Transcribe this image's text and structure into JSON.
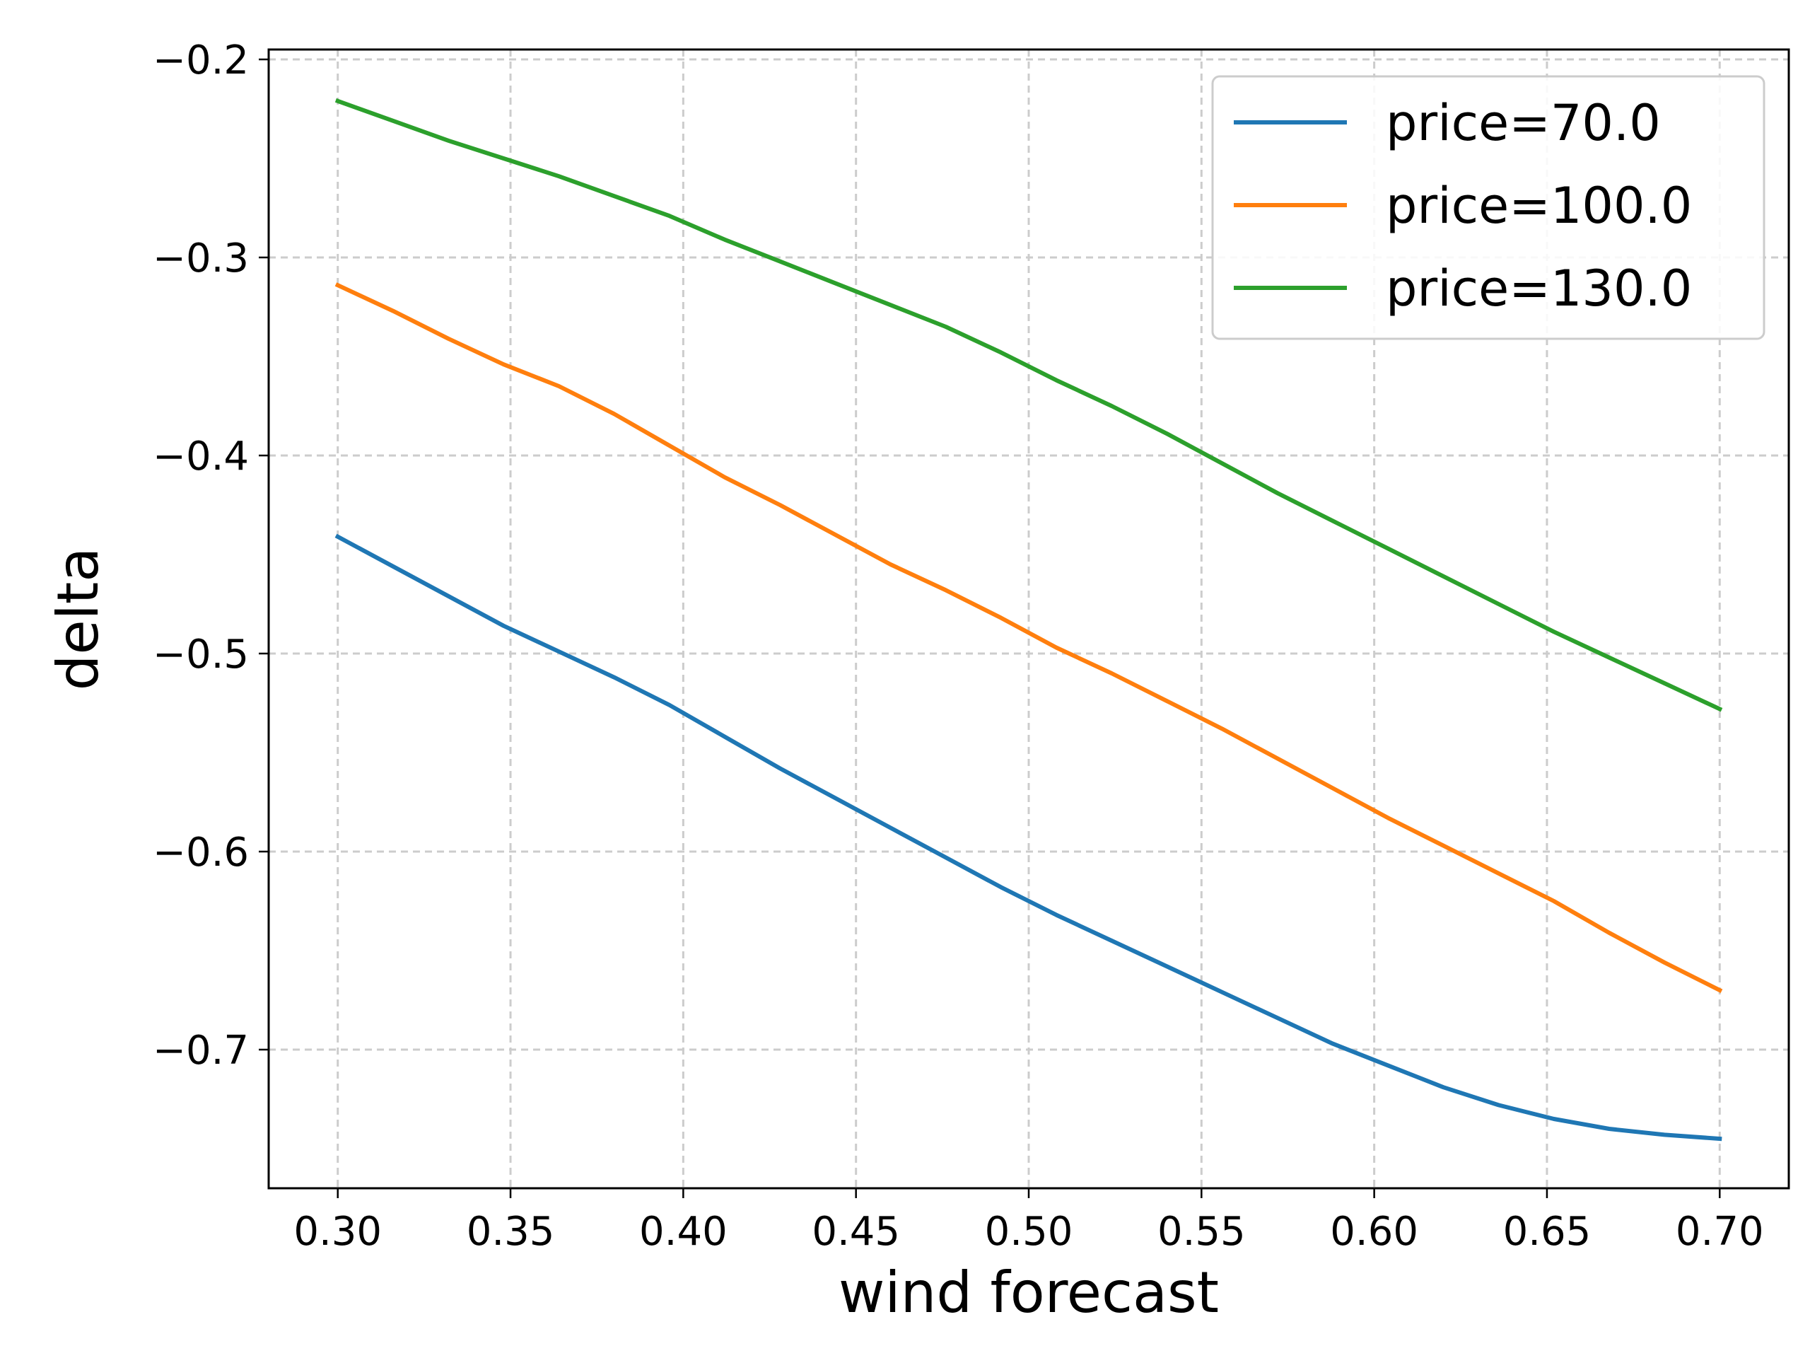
{
  "chart_data": {
    "type": "line",
    "title": "",
    "xlabel": "wind forecast",
    "ylabel": "delta",
    "xlim": [
      0.28,
      0.72
    ],
    "ylim": [
      -0.77,
      -0.195
    ],
    "grid": true,
    "legend_position": "top-right",
    "x_ticks": [
      {
        "value": 0.3,
        "label": "0.30"
      },
      {
        "value": 0.35,
        "label": "0.35"
      },
      {
        "value": 0.4,
        "label": "0.40"
      },
      {
        "value": 0.45,
        "label": "0.45"
      },
      {
        "value": 0.5,
        "label": "0.50"
      },
      {
        "value": 0.55,
        "label": "0.55"
      },
      {
        "value": 0.6,
        "label": "0.60"
      },
      {
        "value": 0.65,
        "label": "0.65"
      },
      {
        "value": 0.7,
        "label": "0.70"
      }
    ],
    "y_ticks": [
      {
        "value": -0.7,
        "label": "−0.7"
      },
      {
        "value": -0.6,
        "label": "−0.6"
      },
      {
        "value": -0.5,
        "label": "−0.5"
      },
      {
        "value": -0.4,
        "label": "−0.4"
      },
      {
        "value": -0.3,
        "label": "−0.3"
      },
      {
        "value": -0.2,
        "label": "−0.2"
      }
    ],
    "x": [
      0.3,
      0.316,
      0.332,
      0.348,
      0.364,
      0.38,
      0.396,
      0.412,
      0.428,
      0.444,
      0.46,
      0.476,
      0.492,
      0.508,
      0.524,
      0.54,
      0.556,
      0.572,
      0.588,
      0.604,
      0.62,
      0.636,
      0.652,
      0.668,
      0.684,
      0.7
    ],
    "series": [
      {
        "name": "price=70.0",
        "color": "#1f77b4",
        "values": [
          -0.441,
          -0.456,
          -0.471,
          -0.486,
          -0.499,
          -0.512,
          -0.526,
          -0.542,
          -0.558,
          -0.573,
          -0.588,
          -0.603,
          -0.618,
          -0.632,
          -0.645,
          -0.658,
          -0.671,
          -0.684,
          -0.697,
          -0.708,
          -0.719,
          -0.728,
          -0.735,
          -0.74,
          -0.743,
          -0.745
        ]
      },
      {
        "name": "price=100.0",
        "color": "#ff7f0e",
        "values": [
          -0.314,
          -0.327,
          -0.341,
          -0.354,
          -0.365,
          -0.379,
          -0.395,
          -0.411,
          -0.425,
          -0.44,
          -0.455,
          -0.468,
          -0.482,
          -0.497,
          -0.51,
          -0.524,
          -0.538,
          -0.553,
          -0.568,
          -0.583,
          -0.597,
          -0.611,
          -0.625,
          -0.641,
          -0.656,
          -0.67
        ]
      },
      {
        "name": "price=130.0",
        "color": "#2ca02c",
        "values": [
          -0.221,
          -0.231,
          -0.241,
          -0.25,
          -0.259,
          -0.269,
          -0.279,
          -0.291,
          -0.302,
          -0.313,
          -0.324,
          -0.335,
          -0.348,
          -0.362,
          -0.375,
          -0.389,
          -0.404,
          -0.419,
          -0.433,
          -0.447,
          -0.461,
          -0.475,
          -0.489,
          -0.502,
          -0.515,
          -0.528
        ]
      }
    ]
  }
}
